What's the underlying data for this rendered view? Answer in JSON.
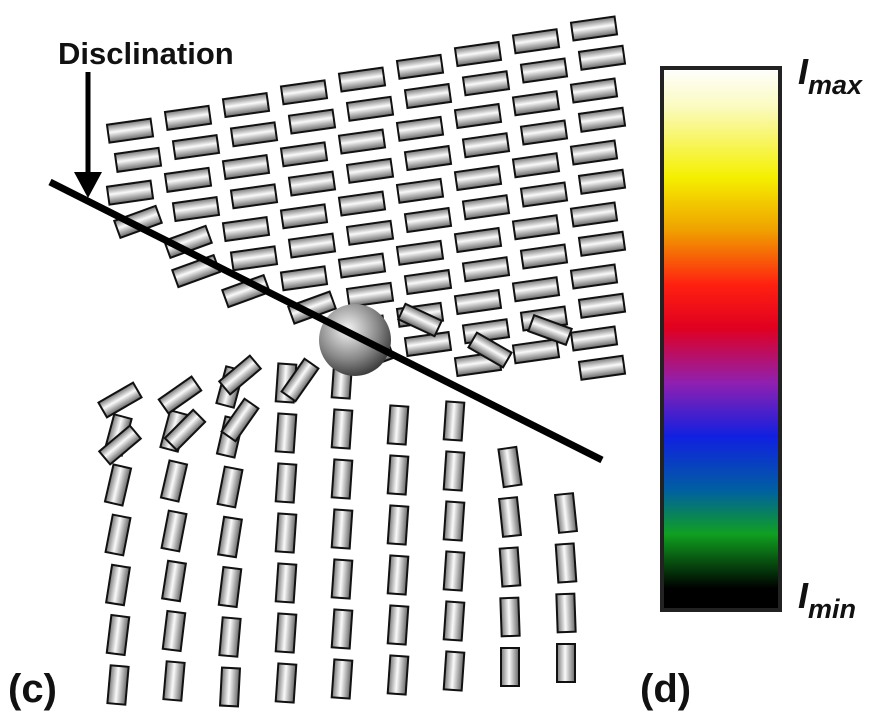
{
  "panel_c": {
    "arrow_label": "Disclination",
    "label": "(c)"
  },
  "panel_d": {
    "label": "(d)",
    "colorbar": {
      "top": {
        "symbol": "I",
        "subscript": "max"
      },
      "bottom": {
        "symbol": "I",
        "subscript": "min"
      }
    }
  }
}
